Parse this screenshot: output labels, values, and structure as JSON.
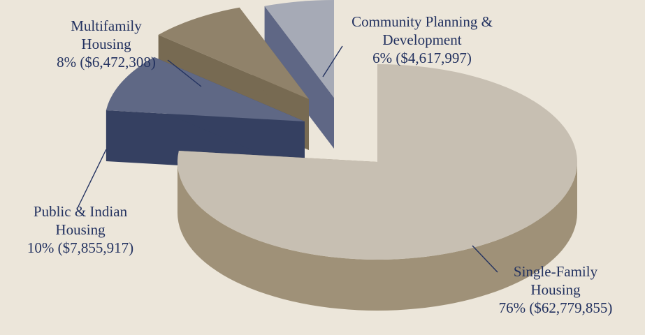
{
  "chart_data": {
    "type": "pie",
    "title": "",
    "legend": "none",
    "slices": [
      {
        "name": "Single-Family Housing",
        "line1": "Single-Family",
        "line2": "Housing",
        "percent_label": "76%",
        "amount_label": "($62,779,855)",
        "value": 62779855,
        "top_color": "#c7bfb2",
        "side_color": "#9f9178",
        "exploded": false
      },
      {
        "name": "Public & Indian Housing",
        "line1": "Public & Indian",
        "line2": "Housing",
        "percent_label": "10%",
        "amount_label": "($7,855,917)",
        "value": 7855917,
        "top_color": "#5f6885",
        "side_color": "#354061",
        "exploded": true
      },
      {
        "name": "Multifamily Housing",
        "line1": "Multifamily",
        "line2": "Housing",
        "percent_label": "8%",
        "amount_label": "($6,472,308)",
        "value": 6472308,
        "top_color": "#90826a",
        "side_color": "#776a52",
        "exploded": true
      },
      {
        "name": "Community Planning & Development",
        "line1": "Community Planning &",
        "line2": "Development",
        "percent_label": "6%",
        "amount_label": "($4,617,997)",
        "value": 4617997,
        "top_color": "#a6aab6",
        "side_color": "#5f6785",
        "exploded": true
      }
    ]
  }
}
